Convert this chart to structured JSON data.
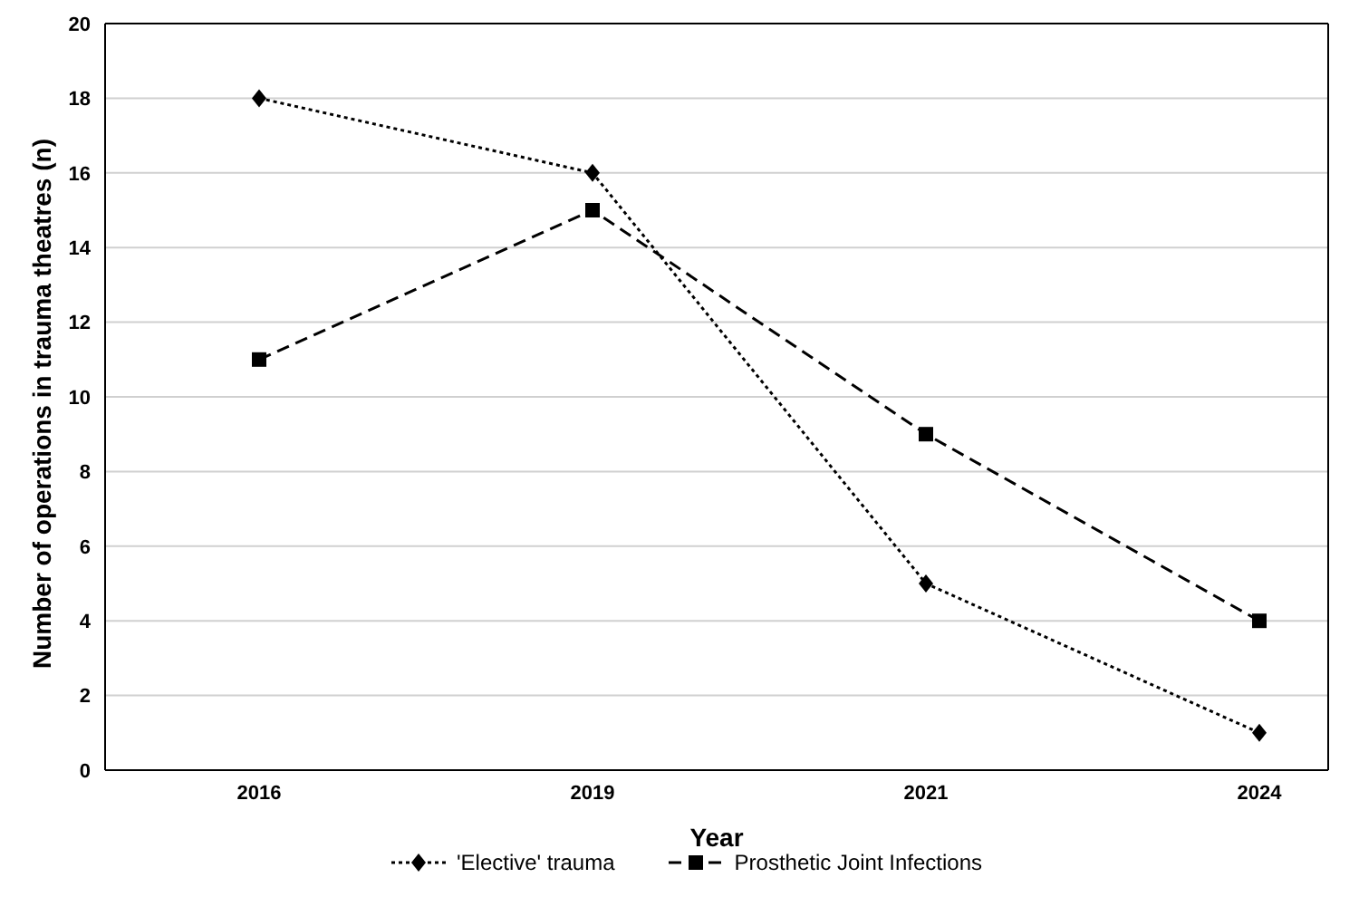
{
  "chart_data": {
    "type": "line",
    "xlabel": "Year",
    "ylabel": "Number of operations in trauma theatres (n)",
    "categories": [
      "2016",
      "2019",
      "2021",
      "2024"
    ],
    "series": [
      {
        "name": "'Elective' trauma",
        "color": "#000000",
        "values": [
          18,
          16,
          5,
          1
        ],
        "marker": "diamond",
        "line_style": "dotted"
      },
      {
        "name": "Prosthetic Joint Infections",
        "color": "#000000",
        "values": [
          11,
          15,
          9,
          4
        ],
        "marker": "square",
        "line_style": "dashed"
      }
    ],
    "ylim": [
      0,
      20
    ],
    "yticks": [
      0,
      2,
      4,
      6,
      8,
      10,
      12,
      14,
      16,
      18,
      20
    ],
    "grid": "y",
    "legend": "bottom"
  }
}
